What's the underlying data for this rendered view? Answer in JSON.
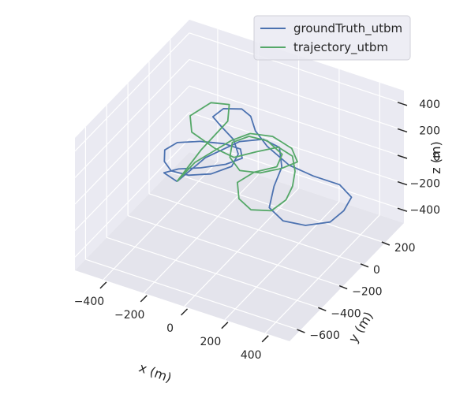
{
  "chart_data": {
    "type": "line",
    "projection": "3d",
    "legend_placement": "top-right",
    "grid": true,
    "xlabel": "x (m)",
    "ylabel": "y (m)",
    "zlabel": "z (m)",
    "x_ticks": [
      "−400",
      "−200",
      "0",
      "200",
      "400"
    ],
    "y_ticks": [
      "200",
      "0",
      "−200",
      "−400",
      "−600"
    ],
    "z_ticks": [
      "400",
      "200",
      "0",
      "−200",
      "−400"
    ],
    "xlim": [
      -540,
      520
    ],
    "ylim": [
      -700,
      380
    ],
    "zlim": [
      -500,
      500
    ],
    "colors": {
      "pane": "#eaeaf2",
      "grid": "#ffffff",
      "series0": "#4c72b0",
      "series1": "#55a868"
    },
    "series": [
      {
        "name": "groundTruth_utbm",
        "color": "#4c72b0",
        "points": [
          [
            -240,
            -310,
            0
          ],
          [
            -220,
            -80,
            0
          ],
          [
            -150,
            110,
            0
          ],
          [
            -70,
            180,
            0
          ],
          [
            20,
            160,
            0
          ],
          [
            100,
            30,
            0
          ],
          [
            140,
            -120,
            0
          ],
          [
            200,
            -280,
            0
          ],
          [
            300,
            -340,
            0
          ],
          [
            400,
            -320,
            0
          ],
          [
            480,
            -240,
            0
          ],
          [
            490,
            -130,
            0
          ],
          [
            470,
            -20,
            0
          ],
          [
            380,
            40,
            0
          ],
          [
            250,
            40,
            0
          ],
          [
            120,
            60,
            0
          ],
          [
            -30,
            140,
            0
          ],
          [
            -130,
            220,
            0
          ],
          [
            -200,
            310,
            0
          ],
          [
            -260,
            340,
            0
          ],
          [
            -330,
            300,
            0
          ],
          [
            -340,
            220,
            0
          ],
          [
            -270,
            170,
            0
          ],
          [
            -180,
            110,
            0
          ],
          [
            -110,
            20,
            0
          ],
          [
            -90,
            -80,
            0
          ],
          [
            -140,
            -180,
            0
          ],
          [
            -220,
            -240,
            0
          ],
          [
            -300,
            -250,
            0
          ],
          [
            -360,
            -200,
            0
          ],
          [
            -400,
            -120,
            0
          ],
          [
            -380,
            -40,
            0
          ],
          [
            -300,
            20,
            0
          ],
          [
            -200,
            60,
            0
          ],
          [
            -120,
            60,
            0
          ],
          [
            -80,
            0,
            0
          ],
          [
            -120,
            -80,
            0
          ],
          [
            -200,
            -160,
            0
          ],
          [
            -280,
            -220,
            0
          ],
          [
            -320,
            -280,
            0
          ],
          [
            -240,
            -310,
            0
          ]
        ]
      },
      {
        "name": "trajectory_utbm",
        "color": "#55a868",
        "points": [
          [
            -240,
            -310,
            0
          ],
          [
            -250,
            -60,
            30
          ],
          [
            -230,
            150,
            80
          ],
          [
            -280,
            260,
            90
          ],
          [
            -360,
            240,
            80
          ],
          [
            -400,
            120,
            60
          ],
          [
            -340,
            20,
            50
          ],
          [
            -200,
            -30,
            40
          ],
          [
            -100,
            -40,
            30
          ],
          [
            -40,
            60,
            20
          ],
          [
            20,
            150,
            10
          ],
          [
            100,
            130,
            0
          ],
          [
            160,
            40,
            -10
          ],
          [
            200,
            -60,
            -20
          ],
          [
            220,
            -160,
            -30
          ],
          [
            200,
            -260,
            -40
          ],
          [
            120,
            -300,
            -40
          ],
          [
            40,
            -260,
            -30
          ],
          [
            -20,
            -160,
            -20
          ],
          [
            10,
            -60,
            -10
          ],
          [
            80,
            20,
            0
          ],
          [
            60,
            110,
            10
          ],
          [
            -40,
            160,
            20
          ],
          [
            -120,
            140,
            30
          ],
          [
            -160,
            60,
            30
          ],
          [
            -120,
            -40,
            20
          ],
          [
            -40,
            -100,
            10
          ],
          [
            40,
            -60,
            0
          ],
          [
            100,
            30,
            -10
          ],
          [
            130,
            120,
            -20
          ],
          [
            60,
            200,
            -20
          ],
          [
            -50,
            230,
            -10
          ],
          [
            -140,
            190,
            0
          ],
          [
            -180,
            90,
            10
          ],
          [
            -200,
            -20,
            20
          ],
          [
            -230,
            -160,
            25
          ],
          [
            -240,
            -310,
            0
          ]
        ]
      }
    ]
  }
}
